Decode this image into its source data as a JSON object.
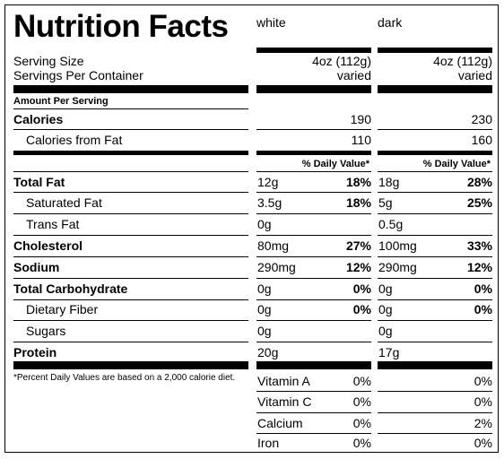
{
  "title": "Nutrition Facts",
  "columns": [
    {
      "name": "white",
      "serving_size": "4oz (112g)",
      "servings_per_container": "varied",
      "calories": "190",
      "calories_from_fat": "110",
      "total_fat": "12g",
      "total_fat_pct": "18%",
      "saturated_fat": "3.5g",
      "saturated_fat_pct": "18%",
      "trans_fat": "0g",
      "cholesterol": "80mg",
      "cholesterol_pct": "27%",
      "sodium": "290mg",
      "sodium_pct": "12%",
      "total_carbohydrate": "0g",
      "total_carbohydrate_pct": "0%",
      "dietary_fiber": "0g",
      "dietary_fiber_pct": "0%",
      "sugars": "0g",
      "protein": "20g"
    },
    {
      "name": "dark",
      "serving_size": "4oz (112g)",
      "servings_per_container": "varied",
      "calories": "230",
      "calories_from_fat": "160",
      "total_fat": "18g",
      "total_fat_pct": "28%",
      "saturated_fat": "5g",
      "saturated_fat_pct": "25%",
      "trans_fat": "0.5g",
      "cholesterol": "100mg",
      "cholesterol_pct": "33%",
      "sodium": "290mg",
      "sodium_pct": "12%",
      "total_carbohydrate": "0g",
      "total_carbohydrate_pct": "0%",
      "dietary_fiber": "0g",
      "dietary_fiber_pct": "0%",
      "sugars": "0g",
      "protein": "17g"
    }
  ],
  "labels": {
    "serving_size": "Serving Size",
    "servings_per_container": "Servings Per Container",
    "amount_per_serving": "Amount Per Serving",
    "calories": "Calories",
    "calories_from_fat": "Calories from Fat",
    "daily_value": "% Daily Value*",
    "total_fat": "Total Fat",
    "saturated_fat": "Saturated Fat",
    "trans_fat": "Trans Fat",
    "cholesterol": "Cholesterol",
    "sodium": "Sodium",
    "total_carbohydrate": "Total Carbohydrate",
    "dietary_fiber": "Dietary Fiber",
    "sugars": "Sugars",
    "protein": "Protein"
  },
  "footnote": "*Percent Daily Values are based on a 2,000 calorie diet.",
  "vitamins": [
    {
      "name": "Vitamin A",
      "white": "0%",
      "dark": "0%"
    },
    {
      "name": "Vitamin C",
      "white": "0%",
      "dark": "0%"
    },
    {
      "name": "Calcium",
      "white": "0%",
      "dark": "2%"
    },
    {
      "name": "Iron",
      "white": "0%",
      "dark": "0%"
    }
  ]
}
